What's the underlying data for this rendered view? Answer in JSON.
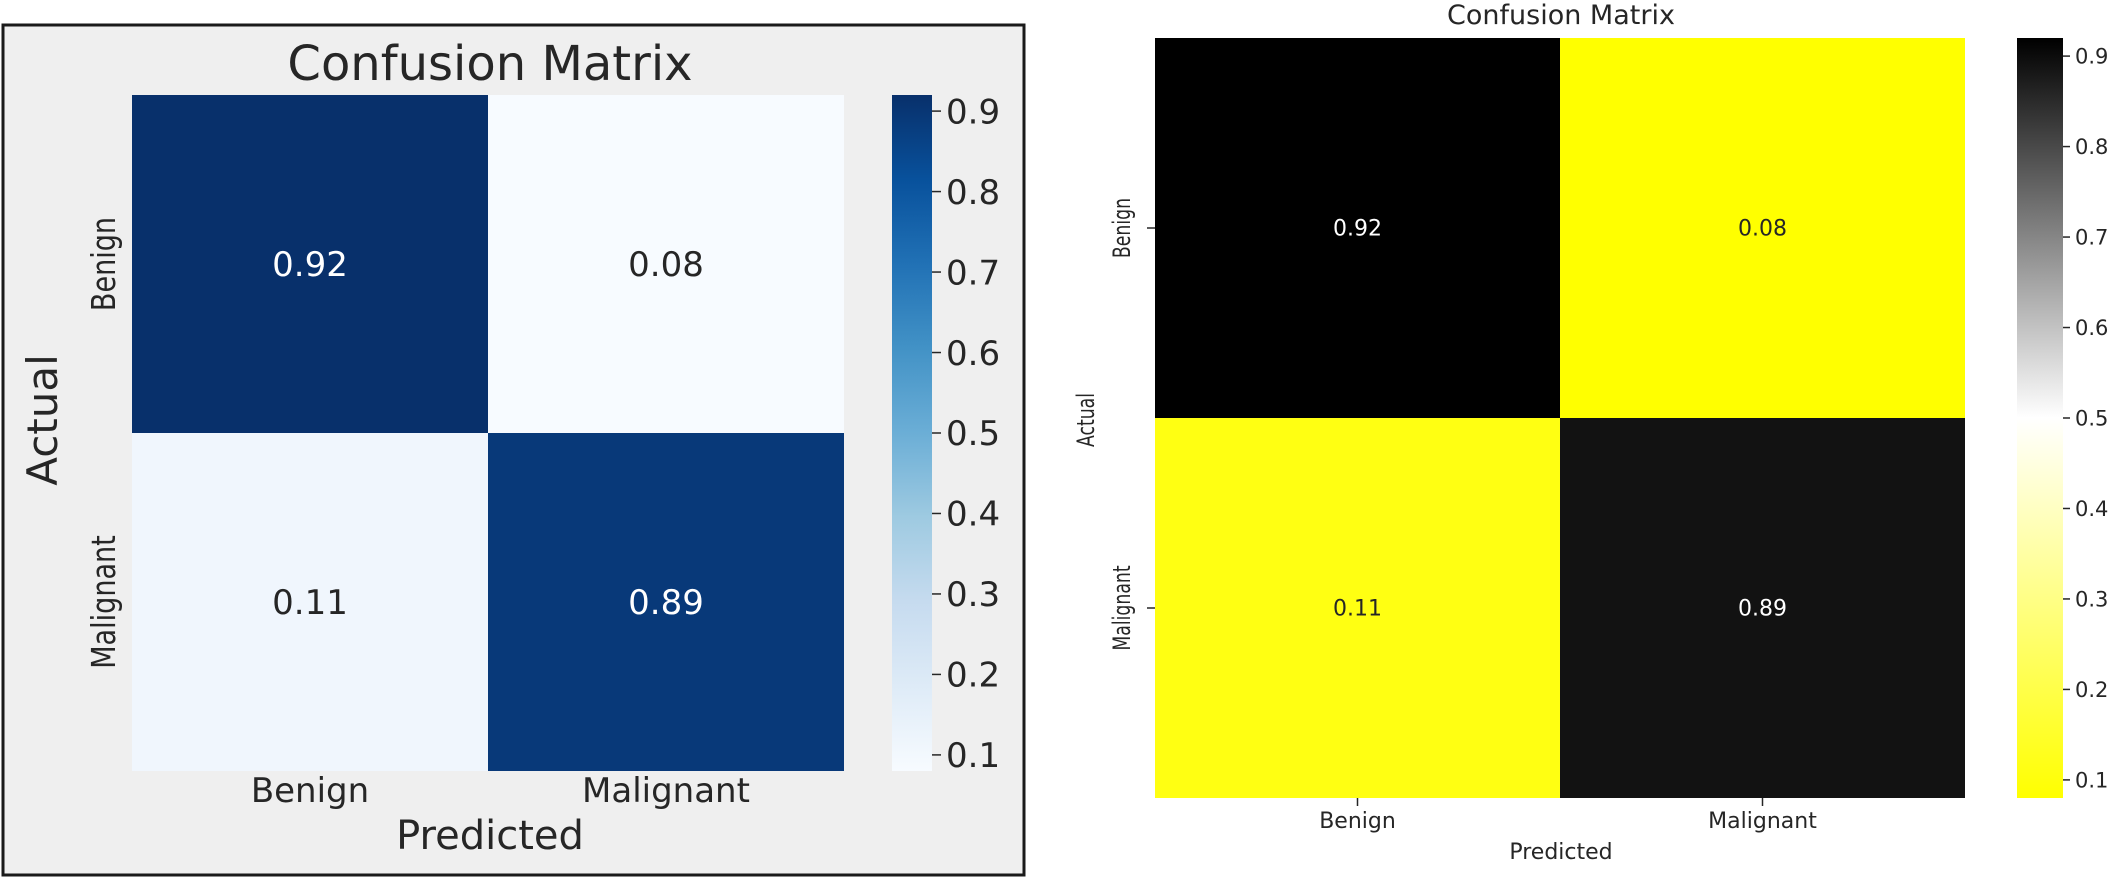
{
  "chart_data": [
    {
      "type": "heatmap",
      "title": "Confusion Matrix",
      "xlabel": "Predicted",
      "ylabel": "Actual",
      "x_categories": [
        "Benign",
        "Malignant"
      ],
      "y_categories": [
        "Benign",
        "Malignant"
      ],
      "values": [
        [
          0.92,
          0.08
        ],
        [
          0.11,
          0.89
        ]
      ],
      "annotations": [
        [
          "0.92",
          "0.08"
        ],
        [
          "0.11",
          "0.89"
        ]
      ],
      "colormap": "Blues",
      "colorscale": [
        "#f7fbff",
        "#deebf7",
        "#c6dbef",
        "#9ecae1",
        "#6baed6",
        "#4292c6",
        "#2171b5",
        "#08519c",
        "#08306b"
      ],
      "vmin": 0.08,
      "vmax": 0.92,
      "colorbar_ticks": [
        0.1,
        0.2,
        0.3,
        0.4,
        0.5,
        0.6,
        0.7,
        0.8,
        0.9
      ],
      "colorbar_tick_labels": [
        "0.1",
        "0.2",
        "0.3",
        "0.4",
        "0.5",
        "0.6",
        "0.7",
        "0.8",
        "0.9"
      ],
      "background": "#efefef",
      "annotation_colors": {
        "dark_cell": "#ffffff",
        "light_cell": "#262626"
      }
    },
    {
      "type": "heatmap",
      "title": "Confusion Matrix",
      "xlabel": "Predicted",
      "ylabel": "Actual",
      "x_categories": [
        "Benign",
        "Malignant"
      ],
      "y_categories": [
        "Benign",
        "Malignant"
      ],
      "values": [
        [
          0.92,
          0.08
        ],
        [
          0.11,
          0.89
        ]
      ],
      "annotations": [
        [
          "0.92",
          "0.08"
        ],
        [
          "0.11",
          "0.89"
        ]
      ],
      "colormap": "gray_r-yellow (yellow-white-black)",
      "colorscale": [
        "#ffff00",
        "#ffffff",
        "#000000"
      ],
      "vmin": 0.08,
      "vmax": 0.92,
      "colorbar_ticks": [
        0.1,
        0.2,
        0.3,
        0.4,
        0.5,
        0.6,
        0.7,
        0.8,
        0.9
      ],
      "colorbar_tick_labels": [
        "0.1",
        "0.2",
        "0.3",
        "0.4",
        "0.5",
        "0.6",
        "0.7",
        "0.8",
        "0.9"
      ],
      "background": "#ffffff",
      "annotation_colors": {
        "dark_cell": "#ffffff",
        "light_cell": "#262626"
      }
    }
  ]
}
